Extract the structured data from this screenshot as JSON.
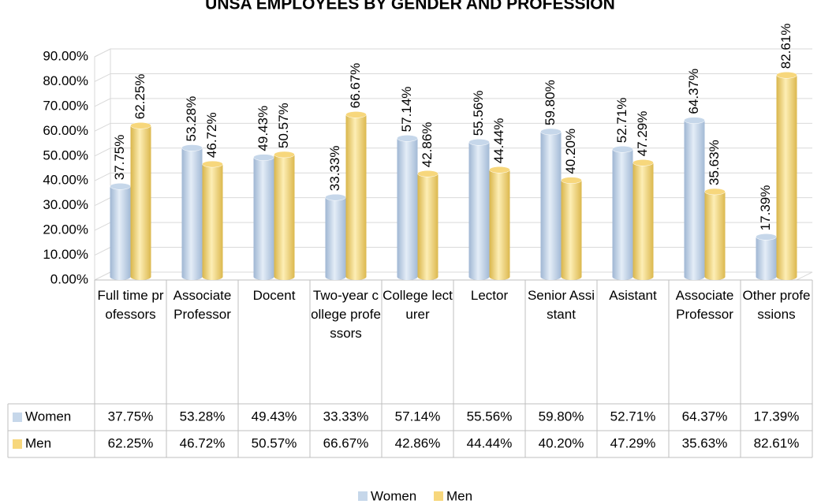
{
  "chart_data": {
    "type": "bar3d",
    "title": "UNSA EMPLOYEES BY GENDER AND PROFESSION",
    "categories": [
      "Full time professors",
      "Associate Professor",
      "Docent",
      "Two-year college professors",
      "College lecturer",
      "Lector",
      "Senior Assistant",
      "Asistant",
      "Associate Professor",
      "Other professions"
    ],
    "series": [
      {
        "name": "Women",
        "color": "#c6d7ea",
        "values": [
          37.75,
          53.28,
          49.43,
          33.33,
          57.14,
          55.56,
          59.8,
          52.71,
          64.37,
          17.39
        ],
        "value_labels": [
          "37.75%",
          "53.28%",
          "49.43%",
          "33.33%",
          "57.14%",
          "55.56%",
          "59.80%",
          "52.71%",
          "64.37%",
          "17.39%"
        ]
      },
      {
        "name": "Men",
        "color": "#f7d77c",
        "values": [
          62.25,
          46.72,
          50.57,
          66.67,
          42.86,
          44.44,
          40.2,
          47.29,
          35.63,
          82.61
        ],
        "value_labels": [
          "62.25%",
          "46.72%",
          "50.57%",
          "66.67%",
          "42.86%",
          "44.44%",
          "40.20%",
          "47.29%",
          "35.63%",
          "82.61%"
        ]
      }
    ],
    "ylim": [
      0,
      90
    ],
    "yticks": [
      {
        "value": 0,
        "label": "0.00%"
      },
      {
        "value": 10,
        "label": "10.00%"
      },
      {
        "value": 20,
        "label": "20.00%"
      },
      {
        "value": 30,
        "label": "30.00%"
      },
      {
        "value": 40,
        "label": "40.00%"
      },
      {
        "value": 50,
        "label": "50.00%"
      },
      {
        "value": 60,
        "label": "60.00%"
      },
      {
        "value": 70,
        "label": "70.00%"
      },
      {
        "value": 80,
        "label": "80.00%"
      },
      {
        "value": 90,
        "label": "90.00%"
      }
    ],
    "grid": true,
    "legend": "bottom"
  }
}
